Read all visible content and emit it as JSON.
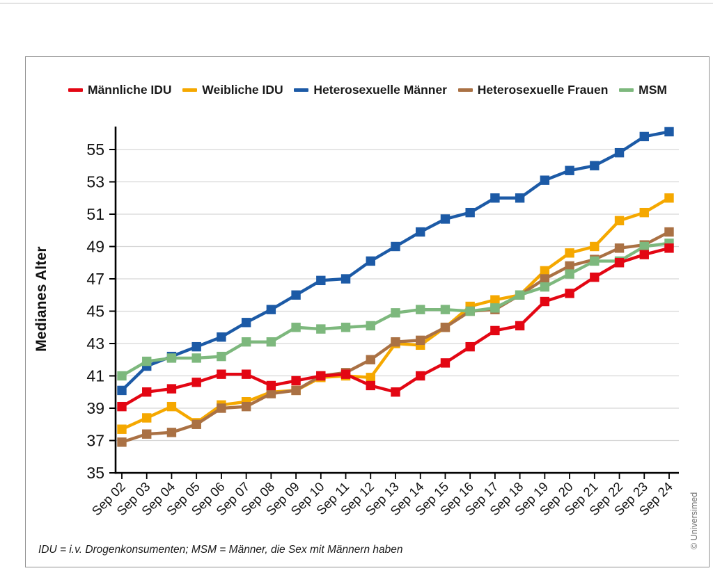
{
  "footnote": "IDU = i.v. Drogenkonsumenten; MSM = Männer, die Sex mit Männern haben",
  "credit": "© Universimed",
  "chart_data": {
    "type": "line",
    "title": "",
    "xlabel": "",
    "ylabel": "Medianes Alter",
    "ylim": [
      35,
      56.5
    ],
    "yticks": [
      35,
      37,
      39,
      41,
      43,
      45,
      47,
      49,
      51,
      53,
      55
    ],
    "grid": true,
    "legend_position": "top",
    "marker": "square",
    "categories": [
      "Sep 02",
      "Sep 03",
      "Sep 04",
      "Sep 05",
      "Sep 06",
      "Sep 07",
      "Sep 08",
      "Sep 09",
      "Sep 10",
      "Sep 11",
      "Sep 12",
      "Sep 13",
      "Sep 14",
      "Sep 15",
      "Sep 16",
      "Sep 17",
      "Sep 18",
      "Sep 19",
      "Sep 20",
      "Sep 21",
      "Sep 22",
      "Sep 23",
      "Sep 24"
    ],
    "series": [
      {
        "name": "Männliche IDU",
        "color": "#e30613",
        "values": [
          39.1,
          40.0,
          40.2,
          40.6,
          41.1,
          41.1,
          40.4,
          40.7,
          41.0,
          41.1,
          40.4,
          40.0,
          41.0,
          41.8,
          42.8,
          43.8,
          44.1,
          45.6,
          46.1,
          47.1,
          48.0,
          48.5,
          48.9
        ]
      },
      {
        "name": "Weibliche IDU",
        "color": "#f5a800",
        "values": [
          37.7,
          38.4,
          39.1,
          38.1,
          39.2,
          39.4,
          40.0,
          40.1,
          40.9,
          41.0,
          40.9,
          43.0,
          42.9,
          44.0,
          45.3,
          45.7,
          46.0,
          47.5,
          48.6,
          49.0,
          50.6,
          51.1,
          52.0
        ]
      },
      {
        "name": "Heterosexuelle Männer",
        "color": "#1c5aa6",
        "values": [
          40.1,
          41.6,
          42.2,
          42.8,
          43.4,
          44.3,
          45.1,
          46.0,
          46.9,
          47.0,
          48.1,
          49.0,
          49.9,
          50.7,
          51.1,
          52.0,
          52.0,
          53.1,
          53.7,
          54.0,
          54.8,
          55.8,
          56.1
        ]
      },
      {
        "name": "Heterosexuelle Frauen",
        "color": "#aa7144",
        "values": [
          36.9,
          37.4,
          37.5,
          38.0,
          39.0,
          39.1,
          39.9,
          40.1,
          41.0,
          41.2,
          42.0,
          43.1,
          43.2,
          44.0,
          45.0,
          45.1,
          46.0,
          47.0,
          47.8,
          48.2,
          48.9,
          49.1,
          49.9
        ]
      },
      {
        "name": "MSM",
        "color": "#7db87d",
        "values": [
          41.0,
          41.9,
          42.1,
          42.1,
          42.2,
          43.1,
          43.1,
          44.0,
          43.9,
          44.0,
          44.1,
          44.9,
          45.1,
          45.1,
          45.0,
          45.2,
          46.0,
          46.5,
          47.3,
          48.1,
          48.1,
          49.0,
          49.2
        ]
      }
    ]
  }
}
